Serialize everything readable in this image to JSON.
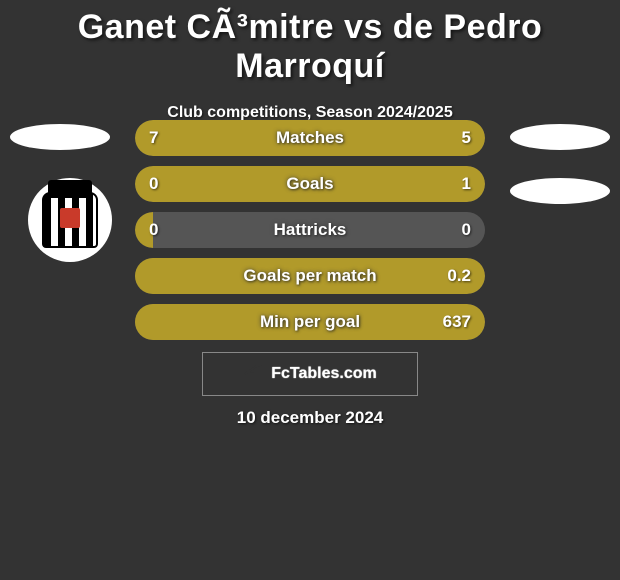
{
  "title": "Ganet CÃ³mitre vs de Pedro Marroquí",
  "subtitle": "Club competitions, Season 2024/2025",
  "date": "10 december 2024",
  "footer_brand": "FcTables.com",
  "colors": {
    "background": "#333333",
    "bar_fill_left": "#b19a2a",
    "bar_fill_right": "#b19a2a",
    "bar_empty": "#555555",
    "text": "#ffffff"
  },
  "stats": [
    {
      "label": "Matches",
      "left_val": "7",
      "right_val": "5",
      "left_pct": 58,
      "right_pct": 42
    },
    {
      "label": "Goals",
      "left_val": "0",
      "right_val": "1",
      "left_pct": 5,
      "right_pct": 95
    },
    {
      "label": "Hattricks",
      "left_val": "0",
      "right_val": "0",
      "left_pct": 5,
      "right_pct": 0
    },
    {
      "label": "Goals per match",
      "left_val": "",
      "right_val": "0.2",
      "left_pct": 0,
      "right_pct": 100
    },
    {
      "label": "Min per goal",
      "left_val": "",
      "right_val": "637",
      "left_pct": 0,
      "right_pct": 100
    }
  ]
}
